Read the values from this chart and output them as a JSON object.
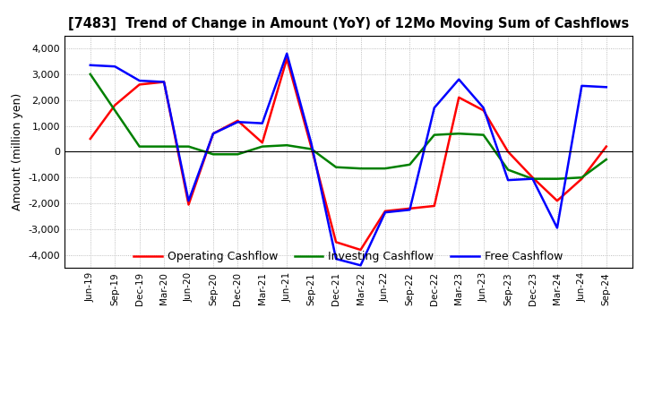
{
  "title": "[7483]  Trend of Change in Amount (YoY) of 12Mo Moving Sum of Cashflows",
  "ylabel": "Amount (million yen)",
  "background_color": "#ffffff",
  "grid_color": "#aaaaaa",
  "ylim": [
    -4500,
    4500
  ],
  "yticks": [
    -4000,
    -3000,
    -2000,
    -1000,
    0,
    1000,
    2000,
    3000,
    4000
  ],
  "x_labels": [
    "Jun-19",
    "Sep-19",
    "Dec-19",
    "Mar-20",
    "Jun-20",
    "Sep-20",
    "Dec-20",
    "Mar-21",
    "Jun-21",
    "Sep-21",
    "Dec-21",
    "Mar-22",
    "Jun-22",
    "Sep-22",
    "Dec-22",
    "Mar-23",
    "Jun-23",
    "Sep-23",
    "Dec-23",
    "Mar-24",
    "Jun-24",
    "Sep-24"
  ],
  "operating": [
    500,
    1800,
    2600,
    2700,
    -2050,
    700,
    1200,
    350,
    3600,
    150,
    -3500,
    -3800,
    -2300,
    -2200,
    -2100,
    2100,
    1600,
    0,
    -1000,
    -1900,
    -1050,
    200
  ],
  "investing": [
    3000,
    1600,
    200,
    200,
    200,
    -100,
    -100,
    200,
    250,
    100,
    -600,
    -650,
    -650,
    -500,
    650,
    700,
    650,
    -700,
    -1050,
    -1050,
    -1000,
    -300
  ],
  "free": [
    3350,
    3300,
    2750,
    2700,
    -1900,
    700,
    1150,
    1100,
    3800,
    300,
    -4150,
    -4400,
    -2350,
    -2250,
    1700,
    2800,
    1700,
    -1100,
    -1050,
    -2950,
    2550,
    2500
  ],
  "operating_color": "#ff0000",
  "investing_color": "#008000",
  "free_color": "#0000ff",
  "line_width": 1.8
}
